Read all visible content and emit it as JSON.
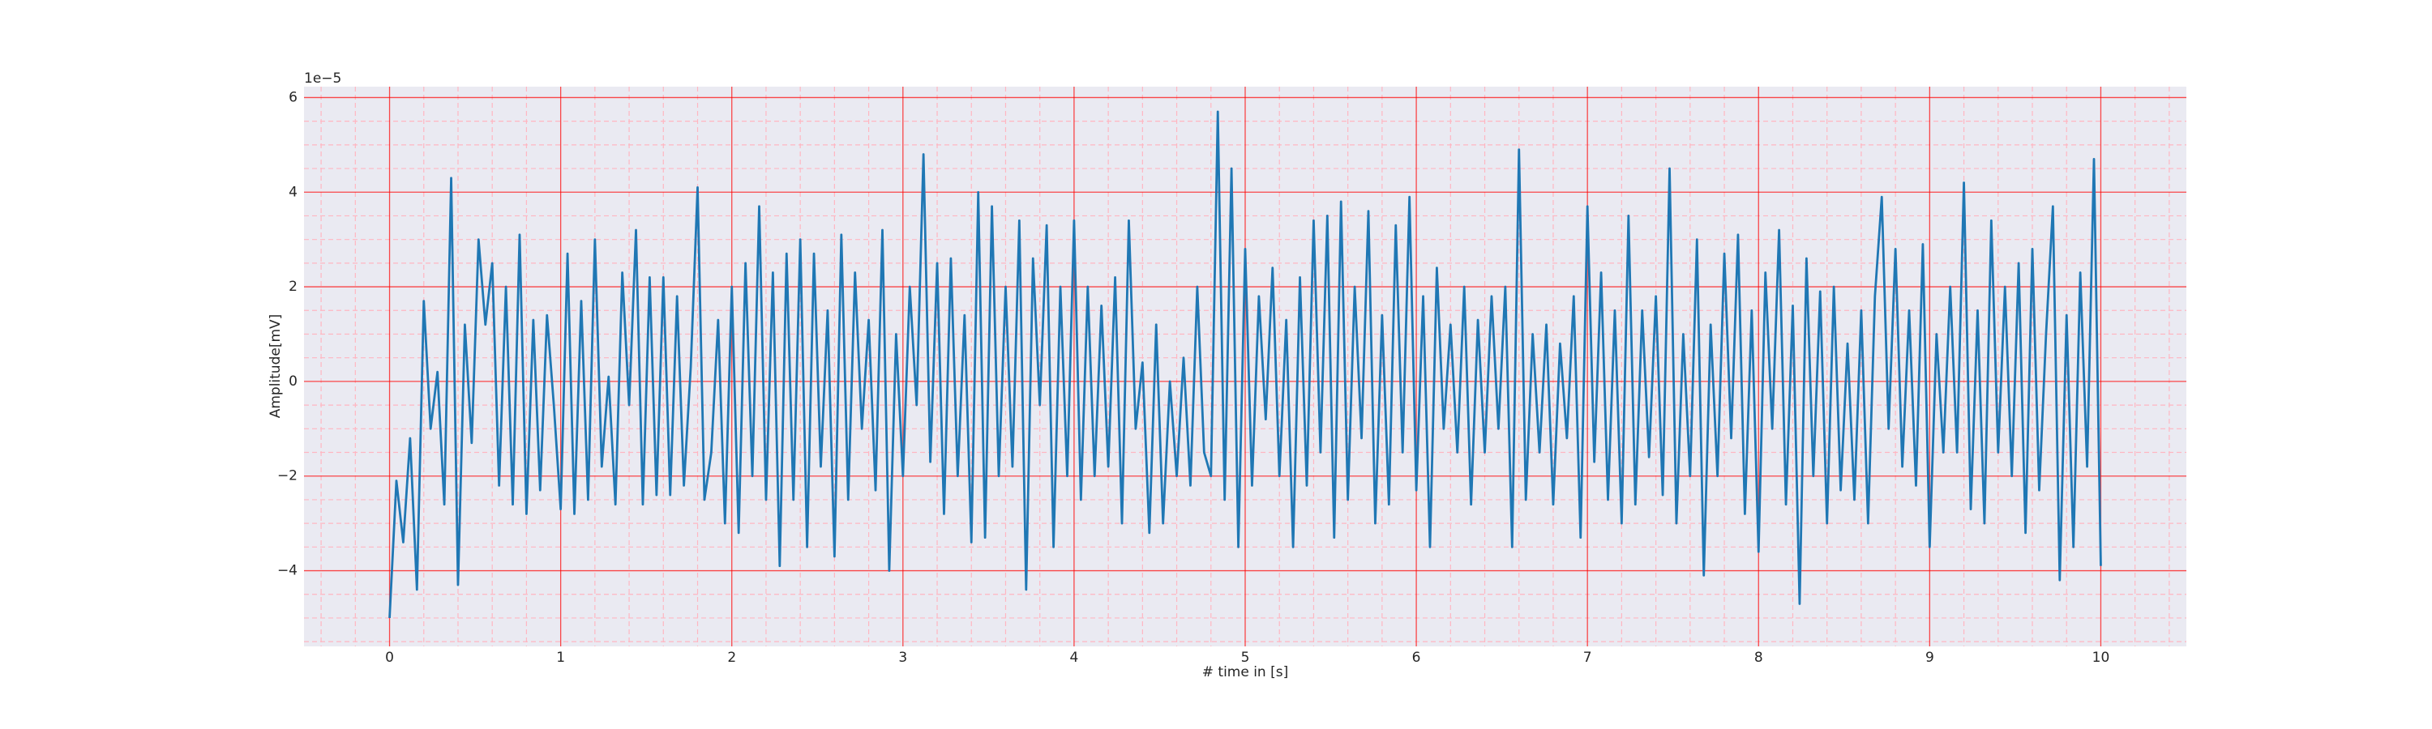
{
  "chart_data": {
    "type": "line",
    "xlabel": "# time in [s]",
    "ylabel": "Amplitude[mV]",
    "y_offset_label": "1e−5",
    "color": "#1f77b4",
    "background": "#eaeaf2",
    "grid": true,
    "grid_color": "#ff0000",
    "minor_grid": true,
    "minor_grid_color": "#ffb6c1",
    "xlim": [
      -0.5,
      10.5
    ],
    "ylim": [
      -5.6,
      6.23
    ],
    "xticks": [
      0,
      1,
      2,
      3,
      4,
      5,
      6,
      7,
      8,
      9,
      10
    ],
    "yticks": [
      {
        "value": -4,
        "label": "−4"
      },
      {
        "value": -2,
        "label": "−2"
      },
      0,
      2,
      4,
      6
    ],
    "xminorticks": [
      -0.4,
      -0.2,
      0.2,
      0.4,
      0.6,
      0.8,
      1.2,
      1.4,
      1.6,
      1.8,
      2.2,
      2.4,
      2.6,
      2.8,
      3.2,
      3.4,
      3.6,
      3.8,
      4.2,
      4.4,
      4.6,
      4.8,
      5.2,
      5.4,
      5.6,
      5.8,
      6.2,
      6.4,
      6.6,
      6.8,
      7.2,
      7.4,
      7.6,
      7.8,
      8.2,
      8.4,
      8.6,
      8.8,
      9.2,
      9.4,
      9.6,
      9.8,
      10.2,
      10.4
    ],
    "yminorticks": [
      -5.5,
      -5,
      -4.5,
      -3.5,
      -3,
      -2.5,
      -1.5,
      -1,
      -0.5,
      0.5,
      1,
      1.5,
      2.5,
      3,
      3.5,
      4.5,
      5,
      5.5
    ],
    "x": [
      0,
      0.04,
      0.08,
      0.12,
      0.16,
      0.2,
      0.24,
      0.28,
      0.32,
      0.36,
      0.4,
      0.44,
      0.48,
      0.52,
      0.56,
      0.6,
      0.64,
      0.68,
      0.72,
      0.76,
      0.8,
      0.84,
      0.88,
      0.92,
      0.96,
      1,
      1.04,
      1.08,
      1.12,
      1.16,
      1.2,
      1.24,
      1.28,
      1.32,
      1.36,
      1.4,
      1.44,
      1.48,
      1.52,
      1.56,
      1.6,
      1.64,
      1.68,
      1.72,
      1.76,
      1.8,
      1.84,
      1.88,
      1.92,
      1.96,
      2,
      2.04,
      2.08,
      2.12,
      2.16,
      2.2,
      2.24,
      2.28,
      2.32,
      2.36,
      2.4,
      2.44,
      2.48,
      2.52,
      2.56,
      2.6,
      2.64,
      2.68,
      2.72,
      2.76,
      2.8,
      2.84,
      2.88,
      2.92,
      2.96,
      3,
      3.04,
      3.08,
      3.12,
      3.16,
      3.2,
      3.24,
      3.28,
      3.32,
      3.36,
      3.4,
      3.44,
      3.48,
      3.52,
      3.56,
      3.6,
      3.64,
      3.68,
      3.72,
      3.76,
      3.8,
      3.84,
      3.88,
      3.92,
      3.96,
      4,
      4.04,
      4.08,
      4.12,
      4.16,
      4.2,
      4.24,
      4.28,
      4.32,
      4.36,
      4.4,
      4.44,
      4.48,
      4.52,
      4.56,
      4.6,
      4.64,
      4.68,
      4.72,
      4.76,
      4.8,
      4.84,
      4.88,
      4.92,
      4.96,
      5,
      5.04,
      5.08,
      5.12,
      5.16,
      5.2,
      5.24,
      5.28,
      5.32,
      5.36,
      5.4,
      5.44,
      5.48,
      5.52,
      5.56,
      5.6,
      5.64,
      5.68,
      5.72,
      5.76,
      5.8,
      5.84,
      5.88,
      5.92,
      5.96,
      6,
      6.04,
      6.08,
      6.12,
      6.16,
      6.2,
      6.24,
      6.28,
      6.32,
      6.36,
      6.4,
      6.44,
      6.48,
      6.52,
      6.56,
      6.6,
      6.64,
      6.68,
      6.72,
      6.76,
      6.8,
      6.84,
      6.88,
      6.92,
      6.96,
      7,
      7.04,
      7.08,
      7.12,
      7.16,
      7.2,
      7.24,
      7.28,
      7.32,
      7.36,
      7.4,
      7.44,
      7.48,
      7.52,
      7.56,
      7.6,
      7.64,
      7.68,
      7.72,
      7.76,
      7.8,
      7.84,
      7.88,
      7.92,
      7.96,
      8,
      8.04,
      8.08,
      8.12,
      8.16,
      8.2,
      8.24,
      8.28,
      8.32,
      8.36,
      8.4,
      8.44,
      8.48,
      8.52,
      8.56,
      8.6,
      8.64,
      8.68,
      8.72,
      8.76,
      8.8,
      8.84,
      8.88,
      8.92,
      8.96,
      9,
      9.04,
      9.08,
      9.12,
      9.16,
      9.2,
      9.24,
      9.28,
      9.32,
      9.36,
      9.4,
      9.44,
      9.48,
      9.52,
      9.56,
      9.6,
      9.64,
      9.68,
      9.72,
      9.76,
      9.8,
      9.84,
      9.88,
      9.92,
      9.96,
      10
    ],
    "values": [
      -5.0,
      -2.1,
      -3.4,
      -1.2,
      -4.4,
      1.7,
      -1.0,
      0.2,
      -2.6,
      4.3,
      -4.3,
      1.2,
      -1.3,
      3.0,
      1.2,
      2.5,
      -2.2,
      2.0,
      -2.6,
      3.1,
      -2.8,
      1.3,
      -2.3,
      1.4,
      -0.5,
      -2.7,
      2.7,
      -2.8,
      1.7,
      -2.5,
      3.0,
      -1.8,
      0.1,
      -2.6,
      2.3,
      -0.5,
      3.2,
      -2.6,
      2.2,
      -2.4,
      2.2,
      -2.4,
      1.8,
      -2.2,
      0.3,
      4.1,
      -2.5,
      -1.5,
      1.3,
      -3.0,
      2.0,
      -3.2,
      2.5,
      -2.0,
      3.7,
      -2.5,
      2.3,
      -3.9,
      2.7,
      -2.5,
      3.0,
      -3.5,
      2.7,
      -1.8,
      1.5,
      -3.7,
      3.1,
      -2.5,
      2.3,
      -1.0,
      1.3,
      -2.3,
      3.2,
      -4.0,
      1.0,
      -2.0,
      2.0,
      -0.5,
      4.8,
      -1.7,
      2.5,
      -2.8,
      2.6,
      -2.0,
      1.4,
      -3.4,
      4.0,
      -3.3,
      3.7,
      -2.0,
      2.0,
      -1.8,
      3.4,
      -4.4,
      2.6,
      -0.5,
      3.3,
      -3.5,
      2.0,
      -2.0,
      3.4,
      -2.5,
      2.0,
      -2.0,
      1.6,
      -1.8,
      2.2,
      -3.0,
      3.4,
      -1.0,
      0.4,
      -3.2,
      1.2,
      -3.0,
      0.0,
      -2.0,
      0.5,
      -2.2,
      2.0,
      -1.5,
      -2.0,
      5.7,
      -2.5,
      4.5,
      -3.5,
      2.8,
      -2.2,
      1.8,
      -0.8,
      2.4,
      -2.0,
      1.3,
      -3.5,
      2.2,
      -2.2,
      3.4,
      -1.5,
      3.5,
      -3.3,
      3.8,
      -2.5,
      2.0,
      -1.2,
      3.6,
      -3.0,
      1.4,
      -2.6,
      3.3,
      -1.5,
      3.9,
      -2.3,
      1.8,
      -3.5,
      2.4,
      -1.0,
      1.2,
      -1.5,
      2.0,
      -2.6,
      1.3,
      -1.5,
      1.8,
      -1.0,
      2.0,
      -3.5,
      4.9,
      -2.5,
      1.0,
      -1.5,
      1.2,
      -2.6,
      0.8,
      -1.2,
      1.8,
      -3.3,
      3.7,
      -1.7,
      2.3,
      -2.5,
      1.5,
      -3.0,
      3.5,
      -2.6,
      1.5,
      -1.6,
      1.8,
      -2.4,
      4.5,
      -3.0,
      1.0,
      -2.0,
      3.0,
      -4.1,
      1.2,
      -2.0,
      2.7,
      -1.2,
      3.1,
      -2.8,
      1.5,
      -3.6,
      2.3,
      -1.0,
      3.2,
      -2.6,
      1.6,
      -4.7,
      2.6,
      -2.0,
      1.9,
      -3.0,
      2.0,
      -2.3,
      0.8,
      -2.5,
      1.5,
      -3.0,
      1.8,
      3.9,
      -1.0,
      2.8,
      -1.8,
      1.5,
      -2.2,
      2.9,
      -3.5,
      1.0,
      -1.5,
      2.0,
      -1.5,
      4.2,
      -2.7,
      1.5,
      -3.0,
      3.4,
      -1.5,
      2.0,
      -2.0,
      2.5,
      -3.2,
      2.8,
      -2.3,
      1.0,
      3.7,
      -4.2,
      1.4,
      -3.5,
      2.3,
      -1.8,
      4.7,
      -3.9
    ]
  }
}
